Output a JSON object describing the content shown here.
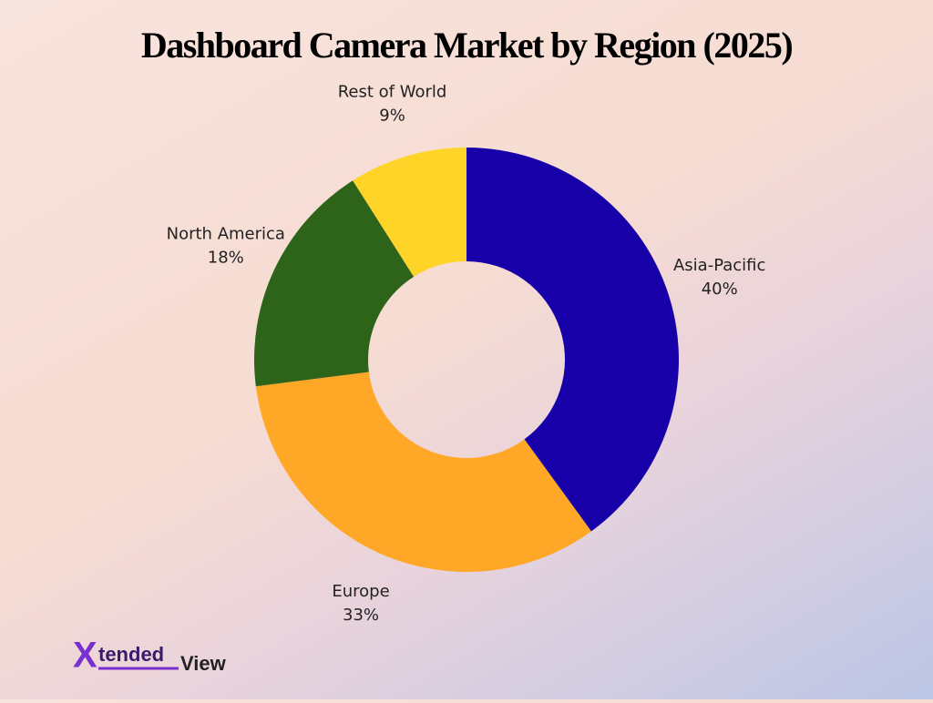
{
  "chart_data": {
    "type": "donut",
    "title": "Dashboard Camera Market by Region (2025)",
    "categories": [
      "Asia-Pacific",
      "Europe",
      "North America",
      "Rest of World"
    ],
    "values": [
      40,
      33,
      18,
      9
    ],
    "value_labels": [
      "40%",
      "33%",
      "18%",
      "9%"
    ],
    "colors": [
      "#1800a8",
      "#ffa726",
      "#2e6419",
      "#ffd428"
    ]
  },
  "logo": {
    "parts": [
      "X",
      "tended",
      "View"
    ]
  }
}
